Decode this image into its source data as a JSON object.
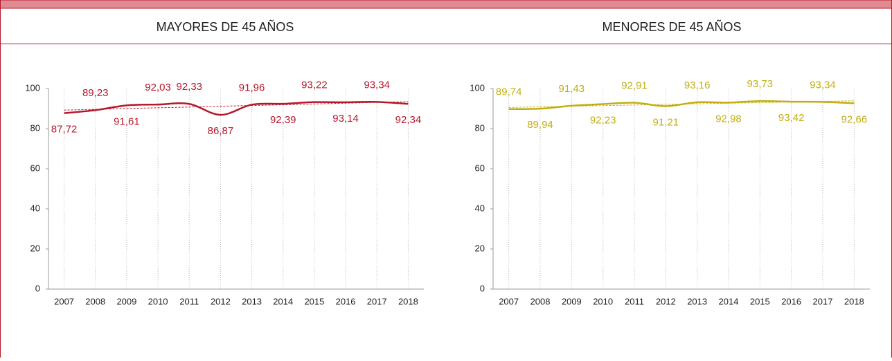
{
  "chart_data": [
    {
      "type": "line",
      "title": "MAYORES DE 45 AÑOS",
      "categories": [
        "2007",
        "2008",
        "2009",
        "2010",
        "2011",
        "2012",
        "2013",
        "2014",
        "2015",
        "2016",
        "2017",
        "2018"
      ],
      "series": [
        {
          "color": "#b5182b",
          "values": [
            87.72,
            89.23,
            91.61,
            92.03,
            92.33,
            86.87,
            91.96,
            92.39,
            93.22,
            93.14,
            93.34,
            92.34
          ],
          "value_labels": [
            "87,72",
            "89,23",
            "91,61",
            "92,03",
            "92,33",
            "86,87",
            "91,96",
            "92,39",
            "93,22",
            "93,14",
            "93,34",
            "92,34"
          ]
        }
      ],
      "ylim": [
        0,
        100
      ],
      "yticks": [
        0,
        20,
        40,
        60,
        80,
        100
      ],
      "trendline": true,
      "grid": true
    },
    {
      "type": "line",
      "title": "MENORES DE 45 AÑOS",
      "categories": [
        "2007",
        "2008",
        "2009",
        "2010",
        "2011",
        "2012",
        "2013",
        "2014",
        "2015",
        "2016",
        "2017",
        "2018"
      ],
      "series": [
        {
          "color": "#c2ae12",
          "values": [
            89.74,
            89.94,
            91.43,
            92.23,
            92.91,
            91.21,
            93.16,
            92.98,
            93.73,
            93.42,
            93.34,
            92.66
          ],
          "value_labels": [
            "89,74",
            "89,94",
            "91,43",
            "92,23",
            "92,91",
            "91,21",
            "93,16",
            "92,98",
            "93,73",
            "93,42",
            "93,34",
            "92,66"
          ]
        }
      ],
      "ylim": [
        0,
        100
      ],
      "yticks": [
        0,
        20,
        40,
        60,
        80,
        100
      ],
      "trendline": true,
      "grid": true
    }
  ]
}
